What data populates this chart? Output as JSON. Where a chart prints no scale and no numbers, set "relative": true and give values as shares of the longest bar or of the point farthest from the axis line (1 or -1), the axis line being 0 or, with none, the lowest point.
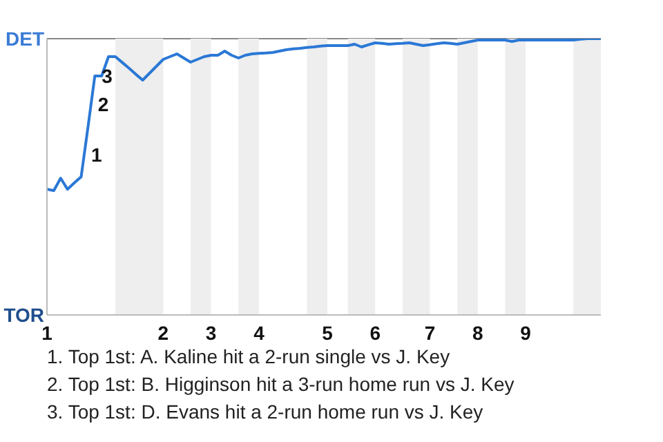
{
  "chart_data": {
    "type": "line",
    "relative": true,
    "categories": [
      "1",
      null,
      null,
      null,
      null,
      null,
      null,
      null,
      null,
      null,
      null,
      null,
      null,
      null,
      null,
      null,
      null,
      "2",
      null,
      null,
      null,
      null,
      null,
      null,
      "3",
      null,
      null,
      null,
      null,
      null,
      null,
      "4",
      null,
      null,
      null,
      null,
      null,
      null,
      null,
      null,
      null,
      "5",
      null,
      null,
      null,
      null,
      null,
      null,
      "6",
      null,
      null,
      null,
      null,
      null,
      null,
      null,
      "7",
      null,
      null,
      null,
      null,
      null,
      null,
      "8",
      null,
      null,
      null,
      null,
      null,
      null,
      "9",
      null,
      null,
      null,
      null,
      null,
      null,
      null,
      null,
      null,
      null,
      null
    ],
    "series": [
      {
        "color": "#2a78d6",
        "values": [
          0.455,
          0.45,
          0.495,
          0.455,
          0.478,
          0.5,
          0.68,
          0.865,
          0.865,
          0.935,
          0.935,
          0.914,
          0.893,
          0.871,
          0.85,
          0.875,
          0.9,
          0.925,
          0.935,
          0.945,
          0.93,
          0.915,
          0.925,
          0.935,
          0.94,
          0.94,
          0.955,
          0.94,
          0.93,
          0.94,
          0.945,
          0.947,
          0.948,
          0.95,
          0.955,
          0.96,
          0.963,
          0.965,
          0.968,
          0.97,
          0.973,
          0.975,
          0.975,
          0.975,
          0.975,
          0.98,
          0.97,
          0.978,
          0.985,
          0.983,
          0.98,
          0.982,
          0.983,
          0.985,
          0.98,
          0.975,
          0.978,
          0.982,
          0.985,
          0.983,
          0.98,
          0.985,
          0.99,
          0.995,
          0.995,
          0.995,
          0.995,
          0.995,
          0.99,
          0.995,
          0.995,
          0.995,
          0.995,
          0.995,
          0.995,
          0.995,
          0.995,
          0.995,
          0.998,
          1,
          1,
          1
        ]
      }
    ],
    "marker": "none",
    "annotations": [
      "DET",
      "TOR",
      "1",
      "2",
      "3",
      "1. Top 1st: A. Kaline hit a 2-run single vs J. Key",
      "2. Top 1st: B. Higginson hit a 3-run home run vs J. Key",
      "3. Top 1st: D. Evans hit a 2-run home run vs J. Key"
    ]
  }
}
